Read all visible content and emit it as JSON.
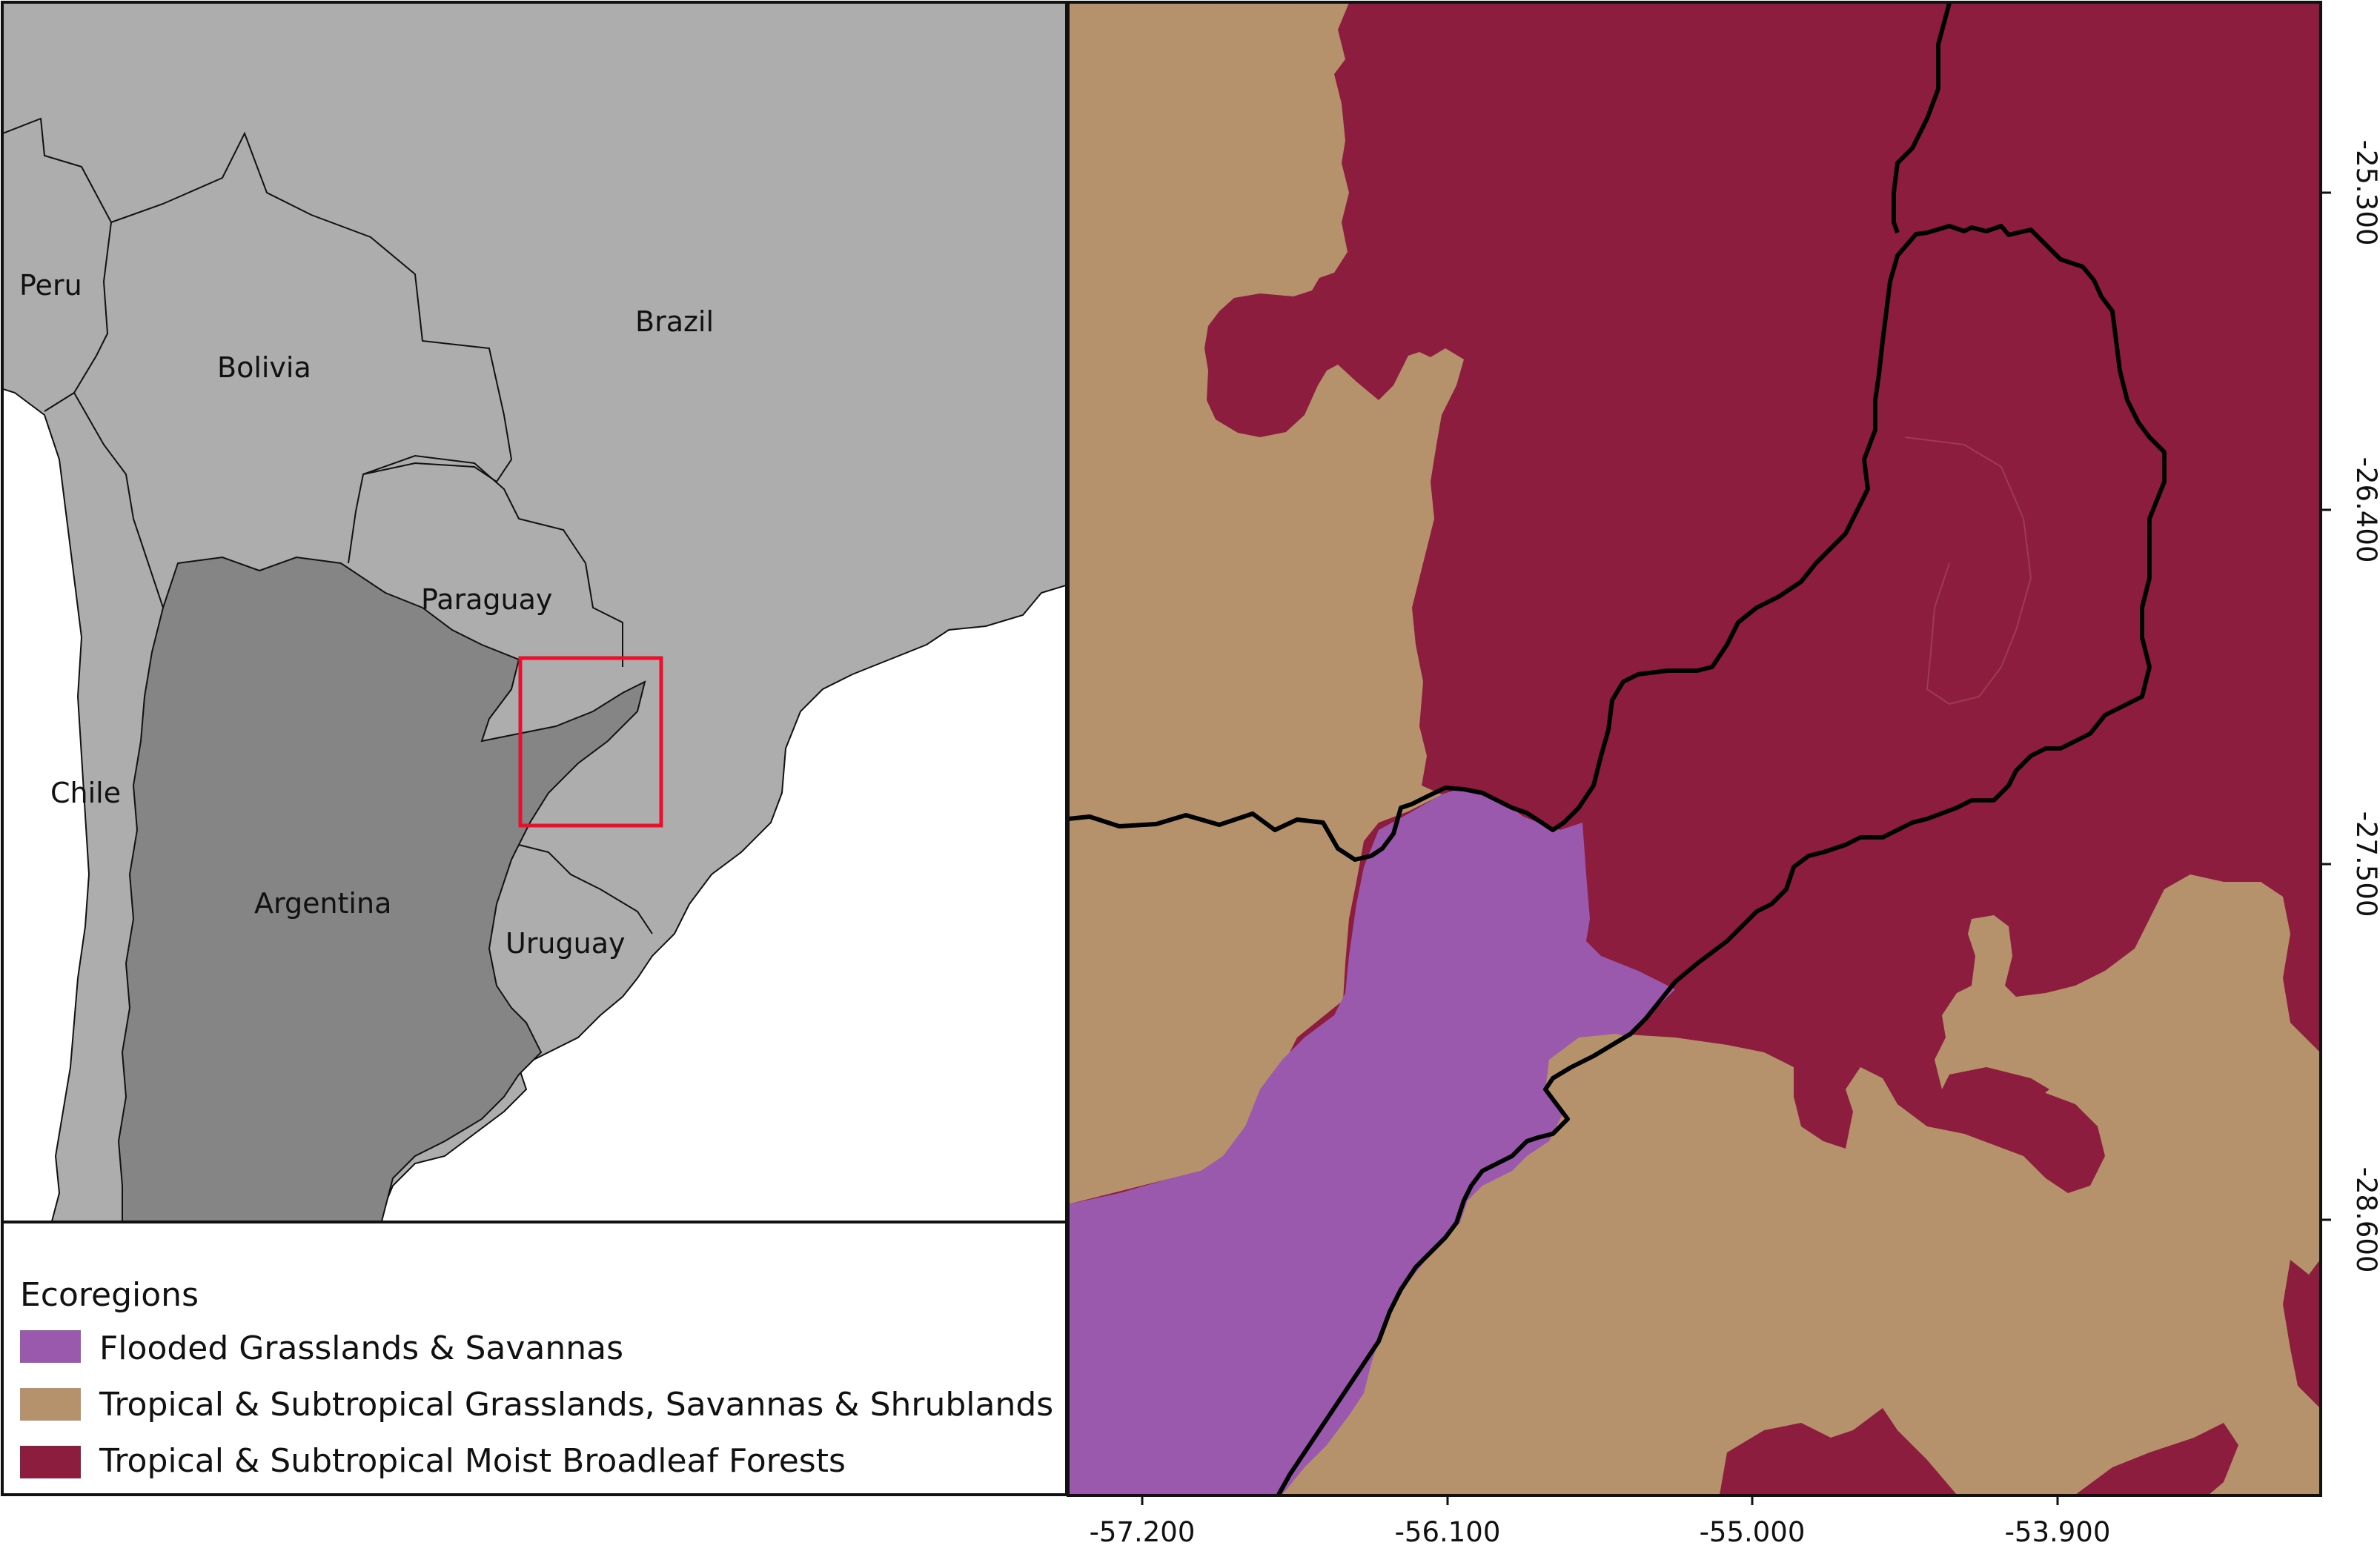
{
  "overview_map": {
    "countries": {
      "peru": "Peru",
      "bolivia": "Bolivia",
      "brazil": "Brazil",
      "paraguay": "Paraguay",
      "chile": "Chile",
      "argentina": "Argentina",
      "uruguay": "Uruguay"
    },
    "colors": {
      "other_countries": "#adadad",
      "argentina": "#858585",
      "ocean": "#ffffff",
      "extent_box": "#e8112d"
    }
  },
  "legend": {
    "title": "Ecoregions",
    "items": [
      {
        "label": "Flooded Grasslands & Savannas",
        "color": "#9b59ad"
      },
      {
        "label": "Tropical & Subtropical Grasslands, Savannas & Shrublands",
        "color": "#b6926c"
      },
      {
        "label": "Tropical & Subtropical Moist Broadleaf Forests",
        "color": "#8c1d3e"
      }
    ]
  },
  "detail_map": {
    "x_ticks": [
      "-57.200",
      "-56.100",
      "-55.000",
      "-53.900"
    ],
    "y_ticks": [
      "-25.300",
      "-26.400",
      "-27.500",
      "-28.600"
    ]
  }
}
